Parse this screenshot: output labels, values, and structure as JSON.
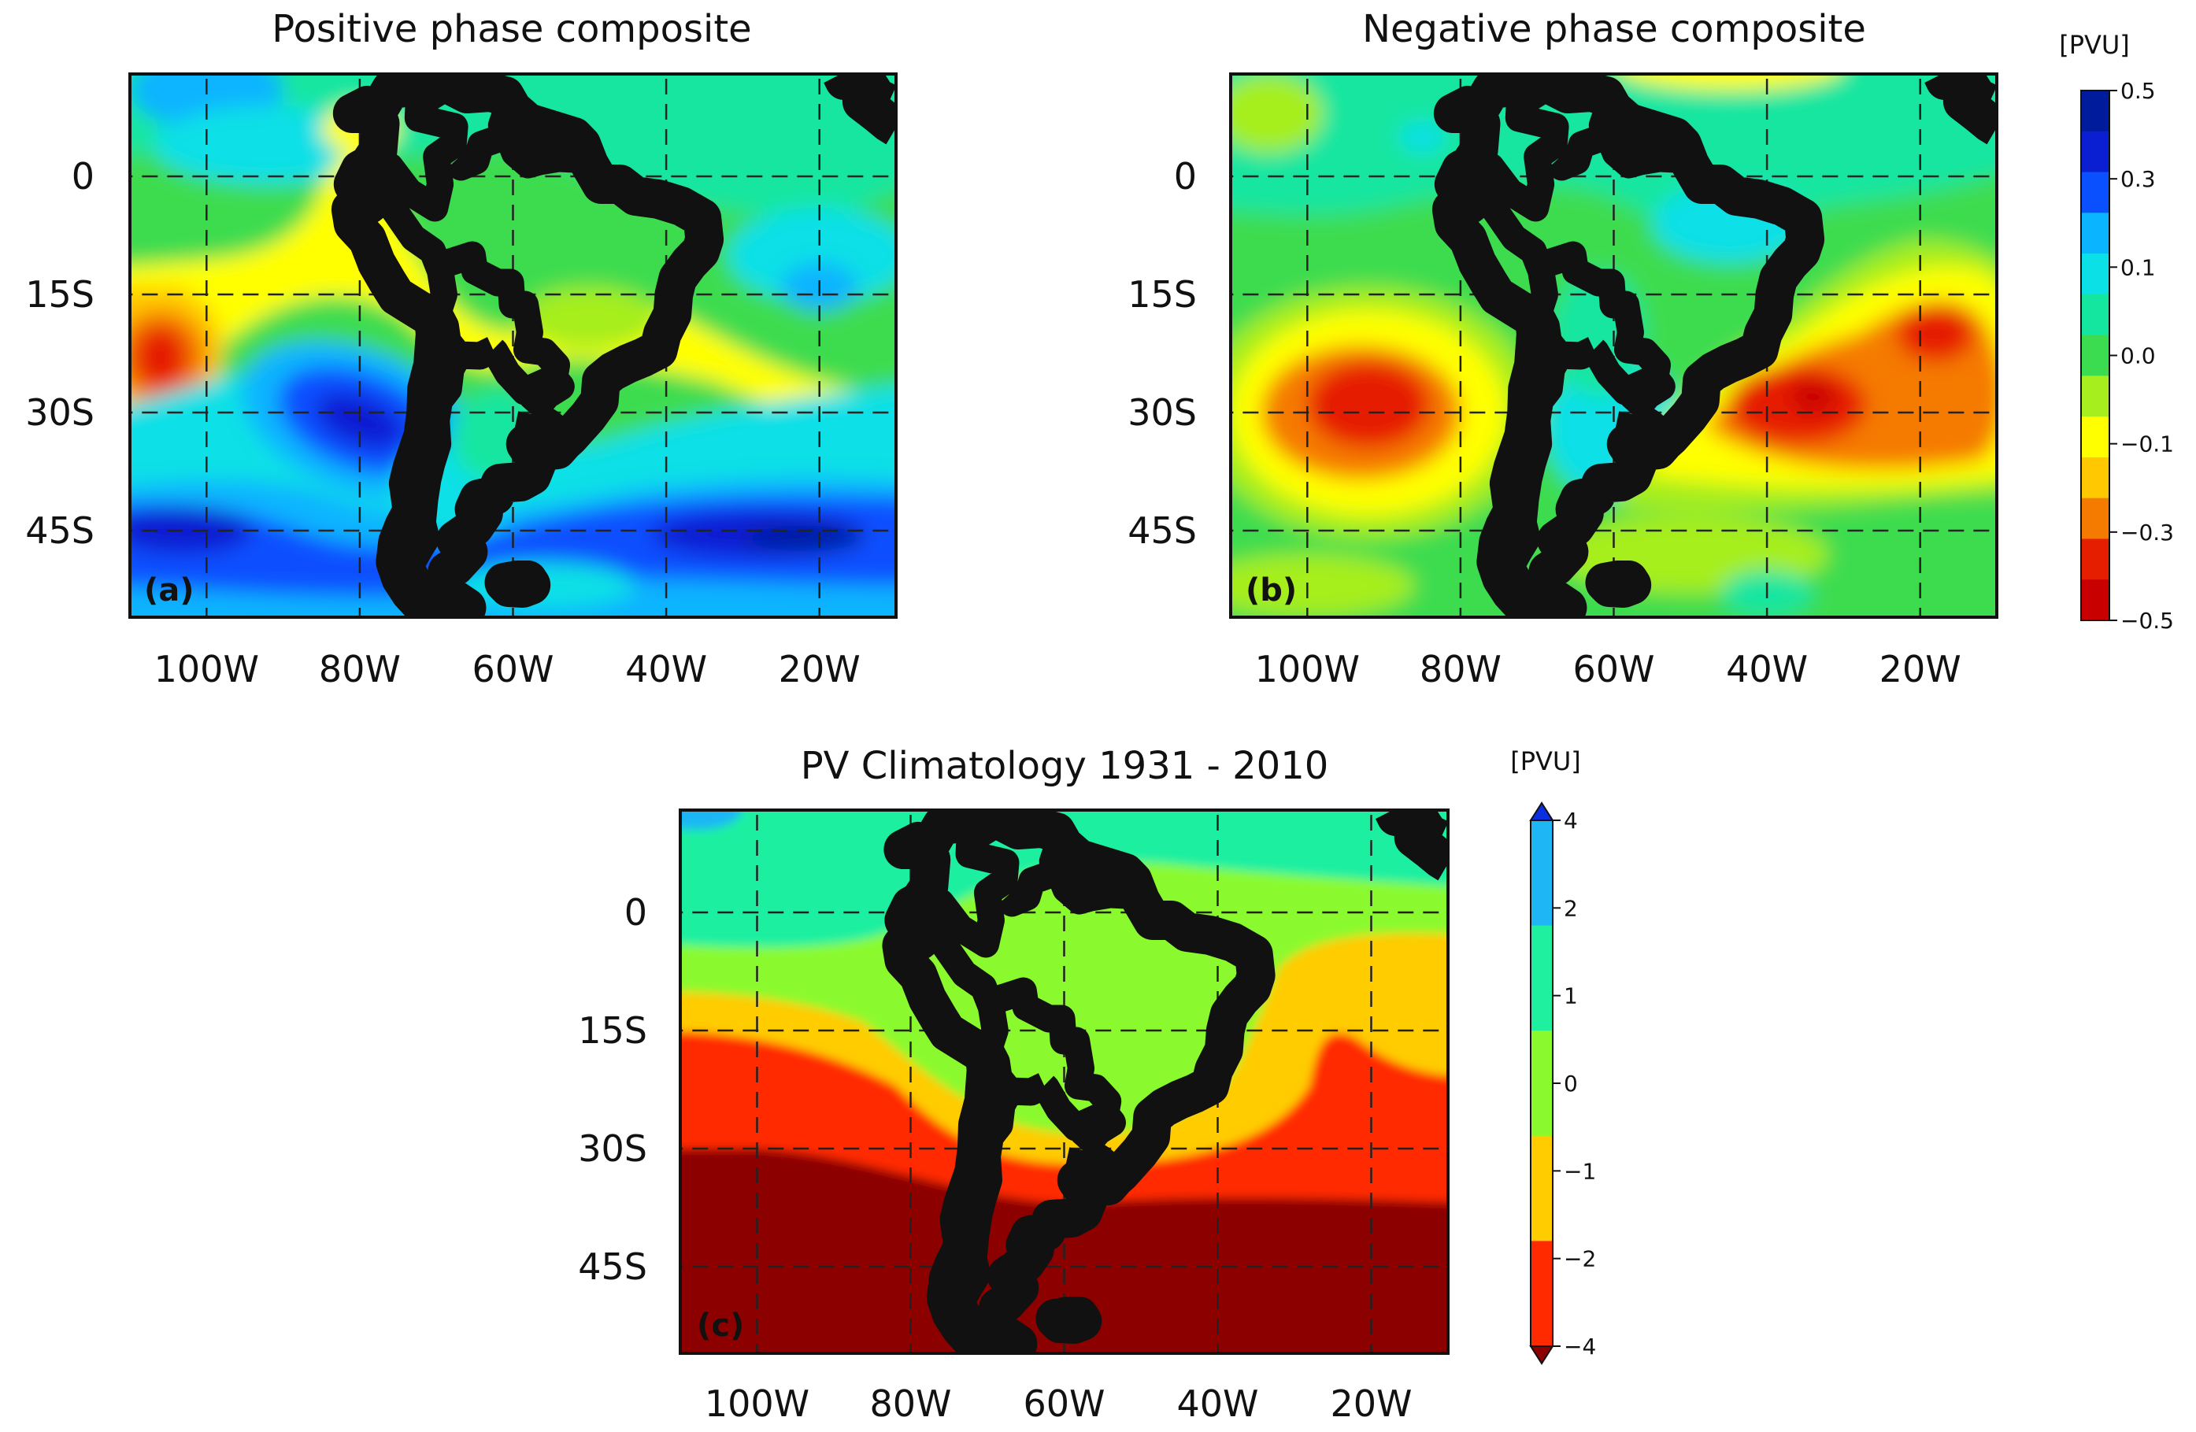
{
  "chart_data": [
    {
      "panel": "a",
      "type": "heatmap",
      "title": "Positive phase composite",
      "panel_label": "(a)",
      "units": "[PVU]",
      "xlabel": "",
      "ylabel": "",
      "x_ticks": [
        {
          "label": "100W",
          "value": -100
        },
        {
          "label": "80W",
          "value": -80
        },
        {
          "label": "60W",
          "value": -60
        },
        {
          "label": "40W",
          "value": -40
        },
        {
          "label": "20W",
          "value": -20
        }
      ],
      "y_ticks": [
        {
          "label": "0",
          "value": 0
        },
        {
          "label": "15S",
          "value": -15
        },
        {
          "label": "30S",
          "value": -30
        },
        {
          "label": "45S",
          "value": -45
        }
      ],
      "xlim": [
        -110,
        -10
      ],
      "ylim": [
        -56,
        13
      ],
      "levels": [
        -0.5,
        -0.4,
        -0.3,
        -0.2,
        -0.1,
        -0.05,
        0.0,
        0.05,
        0.1,
        0.2,
        0.3,
        0.4,
        0.5
      ],
      "features": [
        {
          "lon": -106,
          "lat": -23,
          "value": -0.35
        },
        {
          "lon": -82,
          "lat": 5,
          "value": -0.15
        },
        {
          "lon": -64,
          "lat": -12,
          "value": -0.12
        },
        {
          "lon": -40,
          "lat": -18,
          "value": -0.15
        },
        {
          "lon": -18,
          "lat": -26,
          "value": -0.15
        },
        {
          "lon": -79,
          "lat": -31,
          "value": 0.4
        },
        {
          "lon": -95,
          "lat": -35,
          "value": 0.15
        },
        {
          "lon": -105,
          "lat": -45,
          "value": 0.35
        },
        {
          "lon": -30,
          "lat": -45,
          "value": 0.45
        },
        {
          "lon": -65,
          "lat": -47,
          "value": 0.25
        },
        {
          "lon": -20,
          "lat": -14,
          "value": 0.25
        },
        {
          "lon": -100,
          "lat": 10,
          "value": 0.18
        },
        {
          "lon": -45,
          "lat": -35,
          "value": 0.12
        }
      ]
    },
    {
      "panel": "b",
      "type": "heatmap",
      "title": "Negative phase composite",
      "panel_label": "(b)",
      "units": "[PVU]",
      "xlabel": "",
      "ylabel": "",
      "x_ticks": [
        {
          "label": "100W",
          "value": -100
        },
        {
          "label": "80W",
          "value": -80
        },
        {
          "label": "60W",
          "value": -60
        },
        {
          "label": "40W",
          "value": -40
        },
        {
          "label": "20W",
          "value": -20
        }
      ],
      "y_ticks": [
        {
          "label": "0",
          "value": 0
        },
        {
          "label": "15S",
          "value": -15
        },
        {
          "label": "30S",
          "value": -30
        },
        {
          "label": "45S",
          "value": -45
        }
      ],
      "xlim": [
        -110,
        -10
      ],
      "ylim": [
        -56,
        13
      ],
      "levels": [
        -0.5,
        -0.4,
        -0.3,
        -0.2,
        -0.1,
        -0.05,
        0.0,
        0.05,
        0.1,
        0.2,
        0.3,
        0.4,
        0.5
      ],
      "colorbar_ticks": [
        "0.5",
        "0.3",
        "0.1",
        "0.0",
        "−0.1",
        "−0.3",
        "−0.5"
      ],
      "colorbar_unit": "[PVU]",
      "features": [
        {
          "lon": -92,
          "lat": -30,
          "value": -0.38
        },
        {
          "lon": -34,
          "lat": -28,
          "value": -0.4
        },
        {
          "lon": -18,
          "lat": -25,
          "value": -0.3
        },
        {
          "lon": -22,
          "lat": -15,
          "value": -0.15
        },
        {
          "lon": -60,
          "lat": -33,
          "value": 0.1
        },
        {
          "lon": -48,
          "lat": -4,
          "value": 0.1
        },
        {
          "lon": -80,
          "lat": 5,
          "value": 0.08
        },
        {
          "lon": -50,
          "lat": -48,
          "value": -0.1
        },
        {
          "lon": -105,
          "lat": -50,
          "value": -0.08
        }
      ]
    },
    {
      "panel": "c",
      "type": "heatmap",
      "title": "PV Climatology 1931 - 2010",
      "panel_label": "(c)",
      "units": "[PVU]",
      "xlabel": "",
      "ylabel": "",
      "x_ticks": [
        {
          "label": "100W",
          "value": -100
        },
        {
          "label": "80W",
          "value": -80
        },
        {
          "label": "60W",
          "value": -60
        },
        {
          "label": "40W",
          "value": -40
        },
        {
          "label": "20W",
          "value": -20
        }
      ],
      "y_ticks": [
        {
          "label": "0",
          "value": 0
        },
        {
          "label": "15S",
          "value": -15
        },
        {
          "label": "30S",
          "value": -30
        },
        {
          "label": "45S",
          "value": -45
        }
      ],
      "xlim": [
        -110,
        -10
      ],
      "ylim": [
        -56,
        13
      ],
      "levels": [
        -6,
        -4,
        -2,
        -1,
        0,
        1,
        2,
        4,
        6
      ],
      "colorbar_ticks": [
        "4",
        "2",
        "1",
        "0",
        "−1",
        "−2",
        "−4"
      ],
      "colorbar_unit": "[PVU]",
      "contour_bands": [
        {
          "range": "0 to 1",
          "description": "north of ~5S"
        },
        {
          "range": "-1 to 0",
          "description": "5S to ~25S over continent"
        },
        {
          "range": "-2 to -1",
          "description": "~10S-15S offshore, to ~30S"
        },
        {
          "range": "-4 to -2",
          "description": "~15S-37S"
        },
        {
          "range": "< -4",
          "description": "south of ~33S-37S"
        }
      ]
    }
  ],
  "colors": {
    "anomaly_palette": [
      "#c80000",
      "#e61e00",
      "#f57a00",
      "#ffc800",
      "#ffff00",
      "#a6ee1e",
      "#3cdc50",
      "#14e6a0",
      "#0ae0e6",
      "#0ab4ff",
      "#0a50ff",
      "#0a1ed2",
      "#001c9c"
    ],
    "clim_palette": [
      "#8c0000",
      "#ff2a00",
      "#ffcc00",
      "#8afa2e",
      "#1ef0a0",
      "#1fb6f5",
      "#0a2ee0"
    ]
  }
}
